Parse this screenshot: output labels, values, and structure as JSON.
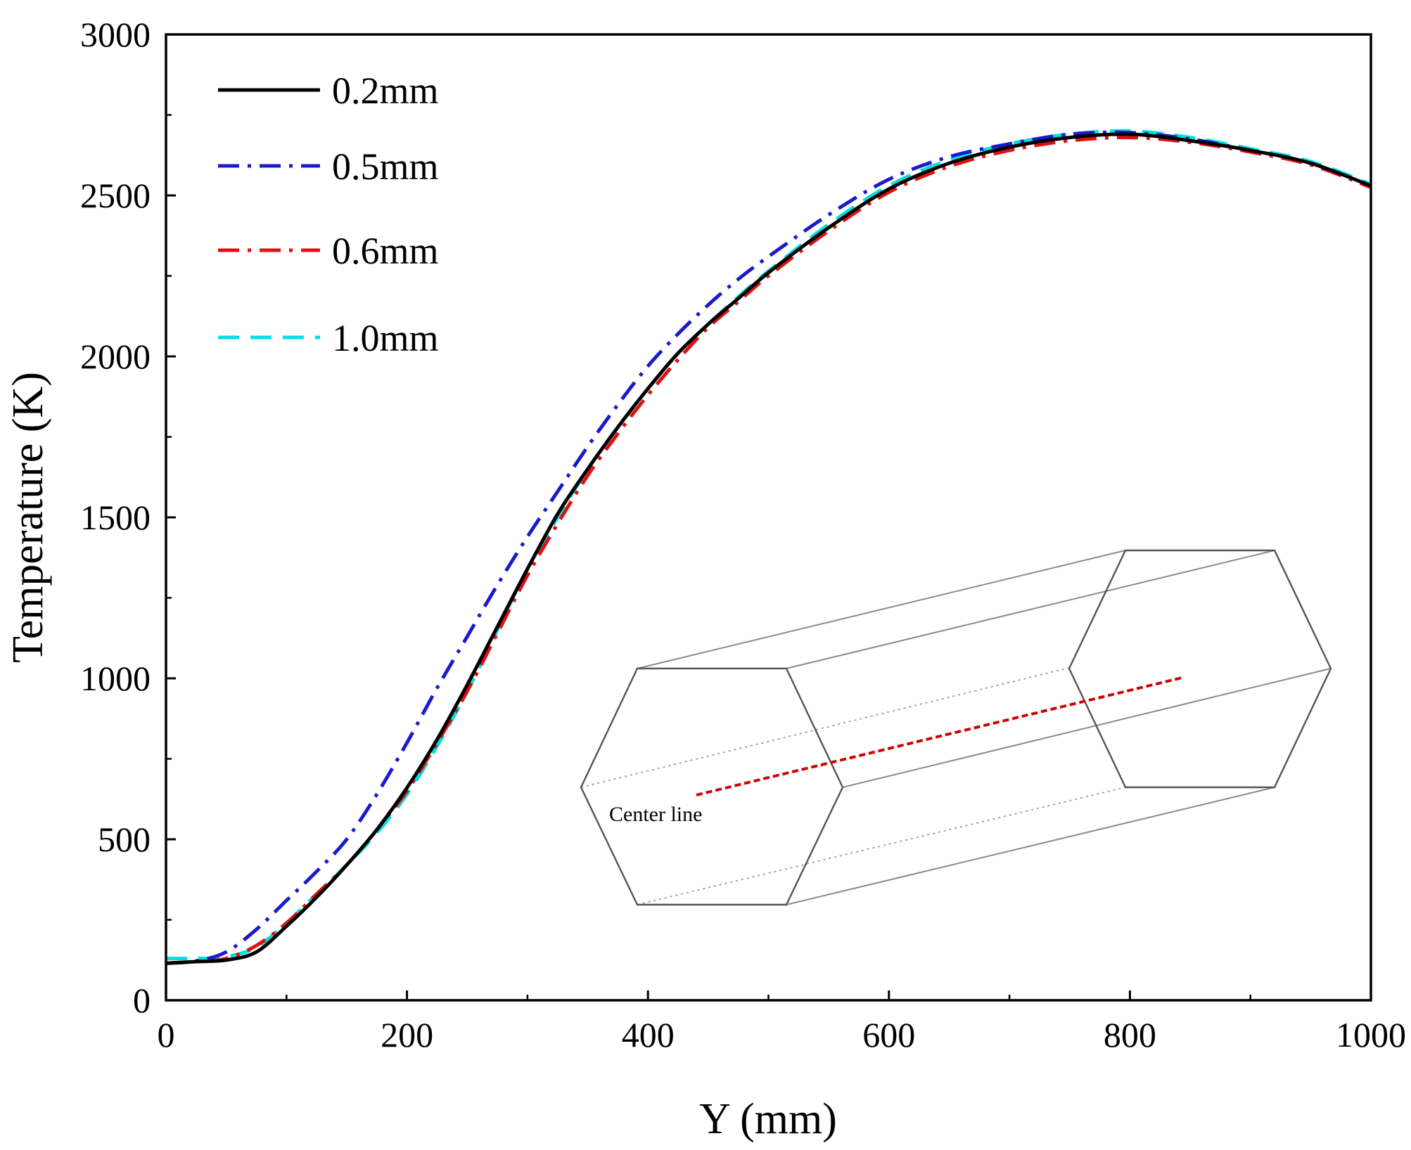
{
  "chart_data": {
    "type": "line",
    "title": "",
    "xlabel": "Y (mm)",
    "ylabel": "Temperature (K)",
    "xlim": [
      0,
      1000
    ],
    "ylim": [
      0,
      3000
    ],
    "xticks": [
      0,
      200,
      400,
      600,
      800,
      1000
    ],
    "yticks": [
      0,
      500,
      1000,
      1500,
      2000,
      2500,
      3000
    ],
    "legend_position": "top-left",
    "x": [
      0,
      25,
      50,
      75,
      100,
      125,
      150,
      175,
      200,
      225,
      250,
      275,
      300,
      325,
      350,
      375,
      400,
      425,
      450,
      475,
      500,
      550,
      600,
      650,
      700,
      750,
      800,
      850,
      900,
      950,
      1000
    ],
    "series": [
      {
        "name": "0.2mm",
        "color": "#000000",
        "dash": "solid",
        "values": [
          115,
          120,
          125,
          150,
          230,
          320,
          420,
          530,
          660,
          810,
          980,
          1160,
          1340,
          1510,
          1650,
          1780,
          1900,
          2010,
          2100,
          2180,
          2260,
          2400,
          2520,
          2600,
          2650,
          2680,
          2690,
          2670,
          2640,
          2600,
          2530
        ]
      },
      {
        "name": "0.5mm",
        "color": "#1a1acc",
        "dash": "dash-dot",
        "values": [
          115,
          122,
          150,
          220,
          310,
          400,
          500,
          640,
          800,
          970,
          1130,
          1290,
          1440,
          1580,
          1720,
          1850,
          1970,
          2070,
          2160,
          2240,
          2310,
          2440,
          2550,
          2620,
          2660,
          2690,
          2695,
          2675,
          2640,
          2600,
          2530
        ]
      },
      {
        "name": "0.6mm",
        "color": "#e01010",
        "dash": "dash-dot",
        "values": [
          115,
          120,
          130,
          170,
          240,
          330,
          420,
          530,
          650,
          800,
          960,
          1140,
          1320,
          1480,
          1630,
          1760,
          1880,
          1990,
          2090,
          2170,
          2250,
          2390,
          2510,
          2590,
          2640,
          2670,
          2680,
          2665,
          2635,
          2595,
          2525
        ]
      },
      {
        "name": "1.0mm",
        "color": "#00e0e0",
        "dash": "dash",
        "values": [
          130,
          130,
          135,
          165,
          240,
          330,
          420,
          520,
          640,
          790,
          960,
          1150,
          1340,
          1500,
          1650,
          1780,
          1900,
          2010,
          2100,
          2185,
          2265,
          2410,
          2530,
          2610,
          2660,
          2690,
          2700,
          2680,
          2645,
          2605,
          2535
        ]
      }
    ],
    "inset": {
      "label": "Center line",
      "line_color": "#cc0000"
    }
  }
}
